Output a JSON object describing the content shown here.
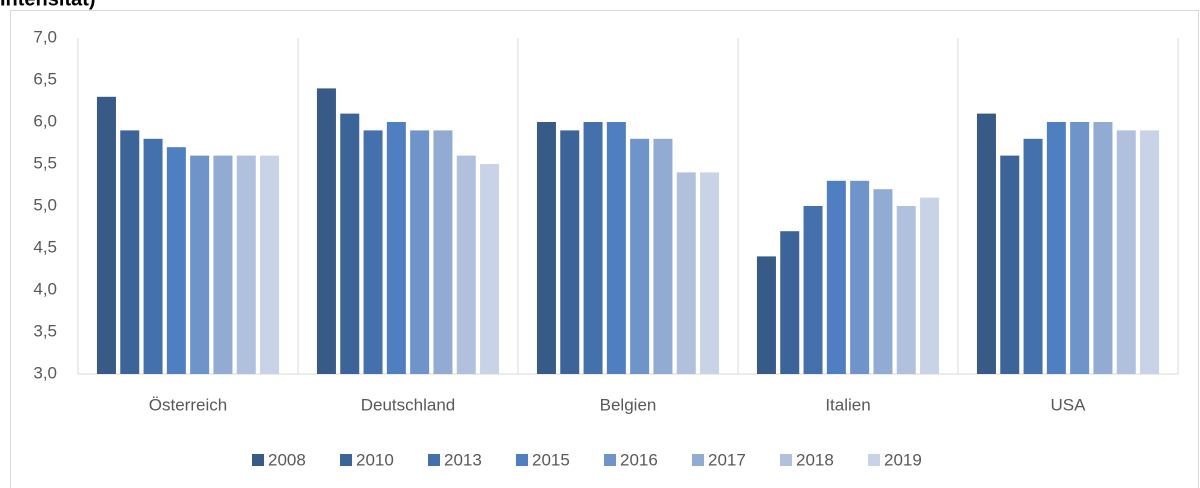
{
  "chart_data": {
    "type": "bar",
    "title": "Intensität)",
    "categories": [
      "Österreich",
      "Deutschland",
      "Belgien",
      "Italien",
      "USA"
    ],
    "series": [
      {
        "name": "2008",
        "color": "#375a87",
        "values": [
          6.3,
          6.4,
          6.0,
          4.4,
          6.1
        ]
      },
      {
        "name": "2010",
        "color": "#3d6499",
        "values": [
          5.9,
          6.1,
          5.9,
          4.7,
          5.6
        ]
      },
      {
        "name": "2013",
        "color": "#4470ab",
        "values": [
          5.8,
          5.9,
          6.0,
          5.0,
          5.8
        ]
      },
      {
        "name": "2015",
        "color": "#4f7fc0",
        "values": [
          5.7,
          6.0,
          6.0,
          5.3,
          6.0
        ]
      },
      {
        "name": "2016",
        "color": "#6f94c9",
        "values": [
          5.6,
          5.9,
          5.8,
          5.3,
          6.0
        ]
      },
      {
        "name": "2017",
        "color": "#92abd3",
        "values": [
          5.6,
          5.9,
          5.8,
          5.2,
          6.0
        ]
      },
      {
        "name": "2018",
        "color": "#b0c0dd",
        "values": [
          5.6,
          5.6,
          5.4,
          5.0,
          5.9
        ]
      },
      {
        "name": "2019",
        "color": "#c9d3e7",
        "values": [
          5.6,
          5.5,
          5.4,
          5.1,
          5.9
        ]
      }
    ],
    "ylim": [
      3,
      7
    ],
    "yticks": [
      {
        "value": 3,
        "label": "3,0"
      },
      {
        "value": 3.5,
        "label": "3,5"
      },
      {
        "value": 4,
        "label": "4,0"
      },
      {
        "value": 4.5,
        "label": "4,5"
      },
      {
        "value": 5,
        "label": "5,0"
      },
      {
        "value": 5.5,
        "label": "5,5"
      },
      {
        "value": 6,
        "label": "6,0"
      },
      {
        "value": 6.5,
        "label": "6,5"
      },
      {
        "value": 7,
        "label": "7,0"
      }
    ],
    "legend": "bottom"
  }
}
